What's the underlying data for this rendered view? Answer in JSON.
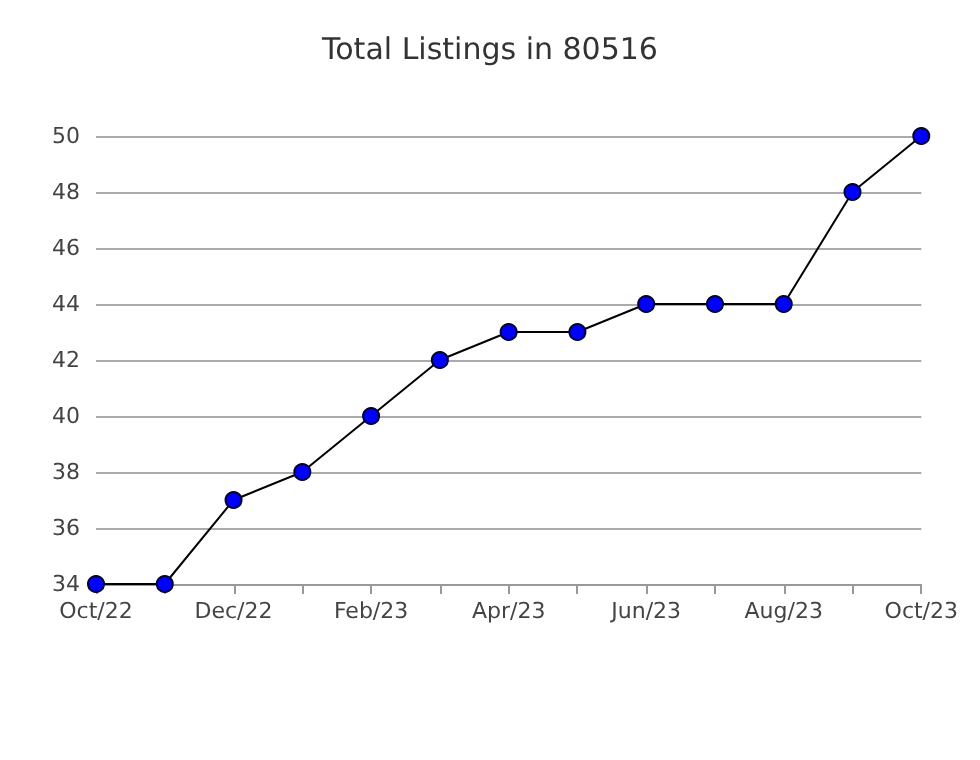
{
  "chart_data": {
    "type": "line",
    "title": "Total Listings in 80516",
    "categories": [
      "Oct/22",
      null,
      "Dec/22",
      null,
      "Feb/23",
      null,
      "Apr/23",
      null,
      "Jun/23",
      null,
      "Aug/23",
      null,
      "Oct/23"
    ],
    "series": [
      {
        "color": "#0000ff",
        "values": [
          34,
          34,
          37,
          38,
          40,
          42,
          43,
          43,
          44,
          44,
          44,
          48,
          50
        ]
      }
    ],
    "ylim": [
      34,
      50
    ],
    "yticks": [
      34,
      36,
      38,
      40,
      42,
      44,
      46,
      48,
      50
    ],
    "grid": "y",
    "marker": "circle",
    "line_style": "solid"
  }
}
